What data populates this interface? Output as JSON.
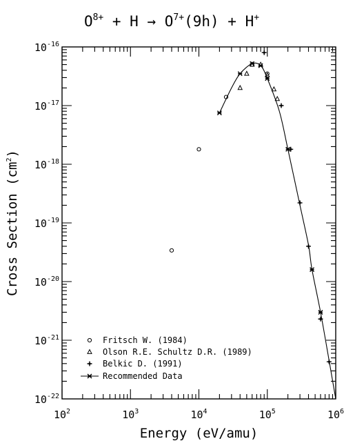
{
  "chart_data": {
    "type": "scatter",
    "title": {
      "parts": [
        {
          "t": "O",
          "sup": false
        },
        {
          "t": "8+",
          "sup": true
        },
        {
          "t": " + H → O",
          "sup": false
        },
        {
          "t": "7+",
          "sup": true
        },
        {
          "t": "(9h) + H",
          "sup": false
        },
        {
          "t": "+",
          "sup": true
        }
      ]
    },
    "xlabel": "Energy (eV/amu)",
    "ylabel": {
      "before": "Cross Section (cm",
      "sup": "2",
      "after": ")"
    },
    "x_scale": "log",
    "y_scale": "log",
    "xlim": [
      100,
      1000000
    ],
    "ylim": [
      1e-22,
      1e-16
    ],
    "x_ticks": [
      {
        "base": "10",
        "exp": "2",
        "value": 100
      },
      {
        "base": "10",
        "exp": "3",
        "value": 1000
      },
      {
        "base": "10",
        "exp": "4",
        "value": 10000
      },
      {
        "base": "10",
        "exp": "5",
        "value": 100000
      },
      {
        "base": "10",
        "exp": "6",
        "value": 1000000
      }
    ],
    "y_ticks": [
      {
        "base": "10",
        "exp": "-22",
        "value": 1e-22
      },
      {
        "base": "10",
        "exp": "-21",
        "value": 1e-21
      },
      {
        "base": "10",
        "exp": "-20",
        "value": 1e-20
      },
      {
        "base": "10",
        "exp": "-19",
        "value": 1e-19
      },
      {
        "base": "10",
        "exp": "-18",
        "value": 1e-18
      },
      {
        "base": "10",
        "exp": "-17",
        "value": 1e-17
      },
      {
        "base": "10",
        "exp": "-16",
        "value": 1e-16
      }
    ],
    "grid": false,
    "legend_position": "bottom-left",
    "series": [
      {
        "name": "Fritsch W. (1984)",
        "marker": "circle",
        "points": [
          {
            "x": 4000,
            "y": 3.4e-20
          },
          {
            "x": 10000,
            "y": 1.8e-18
          },
          {
            "x": 25000,
            "y": 1.4e-17
          },
          {
            "x": 60000,
            "y": 5e-17
          },
          {
            "x": 100000,
            "y": 3.5e-17
          }
        ]
      },
      {
        "name": "Olson R.E. Schultz D.R. (1989)",
        "marker": "triangle",
        "points": [
          {
            "x": 40000,
            "y": 2e-17
          },
          {
            "x": 50000,
            "y": 3.5e-17
          },
          {
            "x": 60000,
            "y": 5e-17
          },
          {
            "x": 80000,
            "y": 5e-17
          },
          {
            "x": 100000,
            "y": 3.3e-17
          },
          {
            "x": 125000,
            "y": 1.9e-17
          },
          {
            "x": 140000,
            "y": 1.3e-17
          }
        ]
      },
      {
        "name": "Belkic D. (1991)",
        "marker": "plus",
        "points": [
          {
            "x": 90000,
            "y": 8e-17
          },
          {
            "x": 160000,
            "y": 1e-17
          },
          {
            "x": 220000,
            "y": 1.8e-18
          },
          {
            "x": 300000,
            "y": 2.2e-19
          },
          {
            "x": 400000,
            "y": 4e-20
          },
          {
            "x": 600000,
            "y": 2.3e-21
          },
          {
            "x": 800000,
            "y": 4.3e-22
          }
        ]
      },
      {
        "name": "Recommended Data",
        "marker": "line",
        "points": [
          {
            "x": 20000,
            "y": 7.5e-18
          },
          {
            "x": 30000,
            "y": 2e-17
          },
          {
            "x": 40000,
            "y": 3.5e-17
          },
          {
            "x": 60000,
            "y": 5.2e-17
          },
          {
            "x": 80000,
            "y": 4.8e-17
          },
          {
            "x": 100000,
            "y": 2.9e-17
          },
          {
            "x": 150000,
            "y": 8e-18
          },
          {
            "x": 200000,
            "y": 1.8e-18
          },
          {
            "x": 300000,
            "y": 2e-19
          },
          {
            "x": 400000,
            "y": 4.2e-20
          },
          {
            "x": 450000,
            "y": 1.6e-20
          },
          {
            "x": 600000,
            "y": 3e-21
          },
          {
            "x": 800000,
            "y": 4.5e-22
          },
          {
            "x": 1000000,
            "y": 1e-22
          }
        ],
        "marked_points": [
          {
            "x": 20000,
            "y": 7.5e-18
          },
          {
            "x": 40000,
            "y": 3.5e-17
          },
          {
            "x": 60000,
            "y": 5.2e-17
          },
          {
            "x": 80000,
            "y": 4.8e-17
          },
          {
            "x": 100000,
            "y": 2.9e-17
          },
          {
            "x": 200000,
            "y": 1.8e-18
          },
          {
            "x": 450000,
            "y": 1.6e-20
          },
          {
            "x": 600000,
            "y": 3e-21
          }
        ]
      }
    ]
  }
}
